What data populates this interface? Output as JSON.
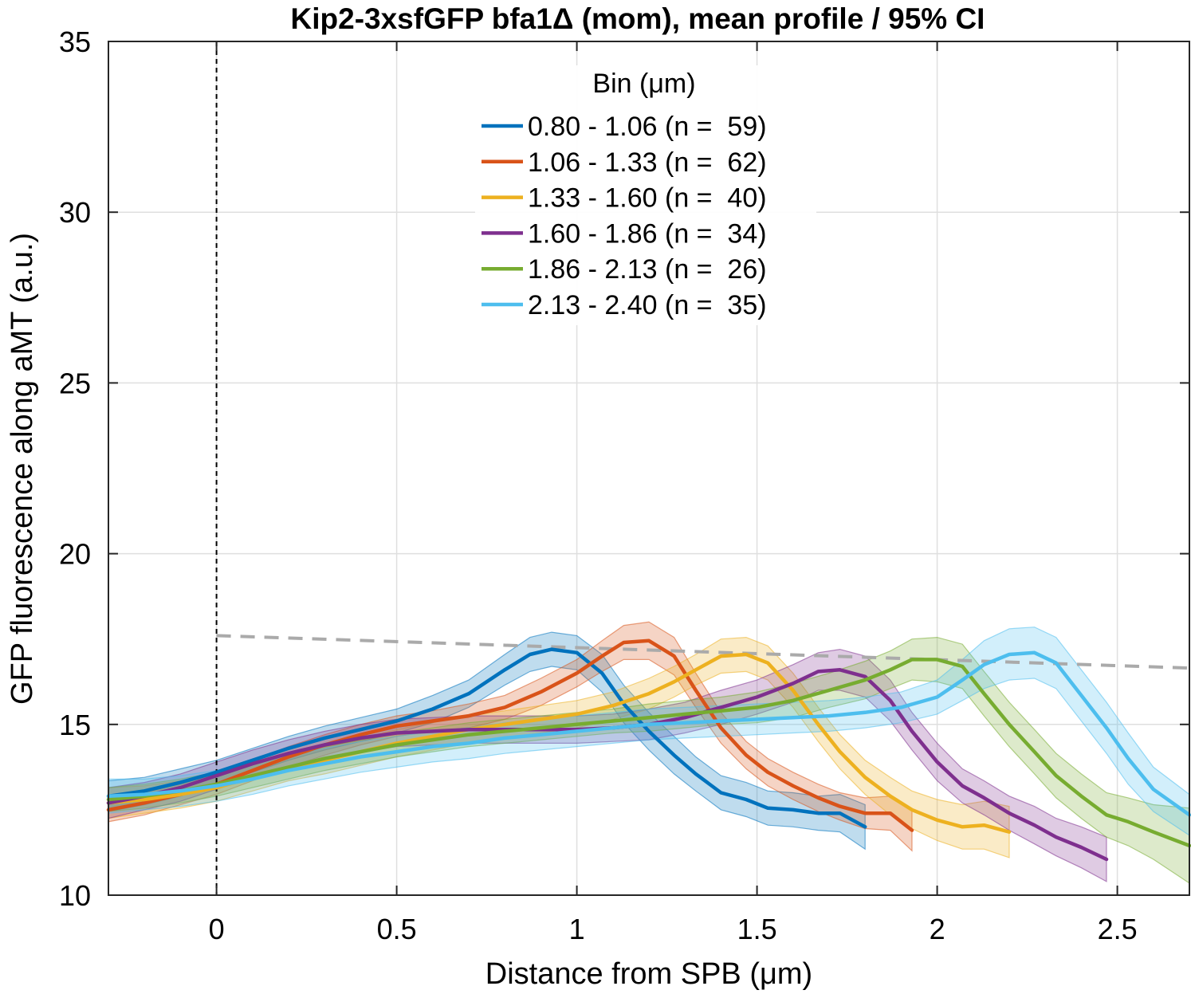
{
  "chart_data": {
    "type": "line",
    "title": "Kip2-3xsfGFP bfa1Δ (mom), mean profile / 95% CI",
    "xlabel": "Distance from SPB (μm)",
    "ylabel": "GFP fluorescence along aMT (a.u.)",
    "xlim": [
      -0.3,
      2.7
    ],
    "ylim": [
      10,
      35
    ],
    "xticks": [
      0,
      0.5,
      1,
      1.5,
      2,
      2.5
    ],
    "xtick_labels": [
      "0",
      "0.5",
      "1",
      "1.5",
      "2",
      "2.5"
    ],
    "yticks": [
      10,
      15,
      20,
      25,
      30,
      35
    ],
    "ytick_labels": [
      "10",
      "15",
      "20",
      "25",
      "30",
      "35"
    ],
    "grid": true,
    "confidence_band": "95% CI",
    "legend": {
      "title": "Bin (μm)",
      "placement": "top-center"
    },
    "reference_lines": [
      {
        "kind": "vertical",
        "x": 0,
        "style": "dashed",
        "color": "#000000"
      },
      {
        "kind": "trend",
        "x": [
          0,
          2.7
        ],
        "y": [
          17.6,
          16.65
        ],
        "style": "dashed",
        "color": "#aaaaaa"
      }
    ],
    "series": [
      {
        "name": "0.80 - 1.06 (n =  59)",
        "color": "#0072BD",
        "x": [
          -0.3,
          -0.2,
          -0.1,
          0,
          0.1,
          0.2,
          0.3,
          0.4,
          0.5,
          0.6,
          0.7,
          0.8,
          0.87,
          0.93,
          1.0,
          1.07,
          1.13,
          1.2,
          1.27,
          1.33,
          1.4,
          1.47,
          1.53,
          1.6,
          1.67,
          1.73,
          1.8
        ],
        "y": [
          12.9,
          13.05,
          13.3,
          13.6,
          13.95,
          14.3,
          14.6,
          14.85,
          15.1,
          15.45,
          15.9,
          16.6,
          17.05,
          17.2,
          17.1,
          16.5,
          15.6,
          14.8,
          14.1,
          13.55,
          13.0,
          12.8,
          12.55,
          12.5,
          12.4,
          12.4,
          12.0
        ],
        "ci": [
          0.45,
          0.4,
          0.4,
          0.35,
          0.35,
          0.35,
          0.35,
          0.35,
          0.35,
          0.4,
          0.4,
          0.45,
          0.5,
          0.5,
          0.5,
          0.55,
          0.55,
          0.55,
          0.55,
          0.5,
          0.5,
          0.5,
          0.5,
          0.5,
          0.5,
          0.55,
          0.65
        ]
      },
      {
        "name": "1.06 - 1.33 (n =  62)",
        "color": "#D95319",
        "x": [
          -0.3,
          -0.2,
          -0.1,
          0,
          0.1,
          0.2,
          0.3,
          0.4,
          0.5,
          0.6,
          0.7,
          0.8,
          0.9,
          1.0,
          1.07,
          1.13,
          1.2,
          1.27,
          1.33,
          1.4,
          1.47,
          1.53,
          1.6,
          1.67,
          1.73,
          1.8,
          1.87,
          1.93
        ],
        "y": [
          12.5,
          12.7,
          12.95,
          13.25,
          13.65,
          14.05,
          14.4,
          14.7,
          14.95,
          15.1,
          15.25,
          15.5,
          15.95,
          16.5,
          17.0,
          17.4,
          17.45,
          17.0,
          16.0,
          14.9,
          14.1,
          13.6,
          13.2,
          12.85,
          12.6,
          12.4,
          12.4,
          11.9
        ],
        "ci": [
          0.35,
          0.35,
          0.3,
          0.3,
          0.3,
          0.3,
          0.3,
          0.3,
          0.3,
          0.3,
          0.35,
          0.35,
          0.4,
          0.4,
          0.45,
          0.5,
          0.55,
          0.55,
          0.5,
          0.45,
          0.4,
          0.4,
          0.4,
          0.4,
          0.4,
          0.45,
          0.5,
          0.6
        ]
      },
      {
        "name": "1.33 - 1.60 (n =  40)",
        "color": "#EDB120",
        "x": [
          -0.3,
          -0.2,
          -0.1,
          0,
          0.1,
          0.2,
          0.3,
          0.4,
          0.5,
          0.6,
          0.7,
          0.8,
          0.9,
          1.0,
          1.1,
          1.2,
          1.27,
          1.33,
          1.4,
          1.47,
          1.53,
          1.6,
          1.67,
          1.73,
          1.8,
          1.87,
          1.93,
          2.0,
          2.07,
          2.13,
          2.2
        ],
        "y": [
          12.7,
          12.8,
          12.95,
          13.15,
          13.45,
          13.75,
          13.95,
          14.2,
          14.45,
          14.65,
          14.85,
          15.0,
          15.15,
          15.3,
          15.55,
          15.9,
          16.25,
          16.6,
          17.0,
          17.05,
          16.8,
          16.0,
          15.0,
          14.2,
          13.45,
          12.9,
          12.5,
          12.2,
          12.0,
          12.05,
          11.85
        ],
        "ci": [
          0.45,
          0.4,
          0.4,
          0.4,
          0.4,
          0.4,
          0.4,
          0.4,
          0.4,
          0.4,
          0.4,
          0.4,
          0.4,
          0.4,
          0.4,
          0.45,
          0.45,
          0.45,
          0.5,
          0.5,
          0.5,
          0.5,
          0.5,
          0.5,
          0.5,
          0.55,
          0.55,
          0.6,
          0.65,
          0.7,
          0.75
        ]
      },
      {
        "name": "1.60 - 1.86 (n =  34)",
        "color": "#7E2F8E",
        "x": [
          -0.3,
          -0.2,
          -0.1,
          0,
          0.1,
          0.2,
          0.3,
          0.4,
          0.5,
          0.6,
          0.7,
          0.8,
          0.9,
          1.0,
          1.1,
          1.2,
          1.3,
          1.4,
          1.5,
          1.6,
          1.67,
          1.73,
          1.8,
          1.87,
          1.93,
          2.0,
          2.07,
          2.13,
          2.2,
          2.27,
          2.33,
          2.4,
          2.47
        ],
        "y": [
          12.7,
          12.9,
          13.15,
          13.5,
          13.85,
          14.15,
          14.4,
          14.6,
          14.75,
          14.8,
          14.85,
          14.85,
          14.85,
          14.85,
          14.9,
          15.0,
          15.2,
          15.5,
          15.8,
          16.2,
          16.55,
          16.6,
          16.4,
          15.7,
          14.8,
          13.9,
          13.2,
          12.85,
          12.4,
          12.05,
          11.7,
          11.4,
          11.05
        ],
        "ci": [
          0.45,
          0.4,
          0.4,
          0.4,
          0.4,
          0.4,
          0.4,
          0.4,
          0.4,
          0.4,
          0.4,
          0.4,
          0.4,
          0.4,
          0.4,
          0.45,
          0.45,
          0.5,
          0.5,
          0.55,
          0.55,
          0.6,
          0.6,
          0.6,
          0.55,
          0.55,
          0.5,
          0.5,
          0.5,
          0.55,
          0.55,
          0.6,
          0.65
        ]
      },
      {
        "name": "1.86 - 2.13 (n =  26)",
        "color": "#77AC30",
        "x": [
          -0.3,
          -0.2,
          -0.1,
          0,
          0.1,
          0.2,
          0.3,
          0.4,
          0.5,
          0.6,
          0.7,
          0.8,
          0.9,
          1.0,
          1.1,
          1.2,
          1.3,
          1.4,
          1.5,
          1.6,
          1.7,
          1.8,
          1.87,
          1.93,
          2.0,
          2.07,
          2.13,
          2.2,
          2.27,
          2.33,
          2.4,
          2.47,
          2.53,
          2.6,
          2.7
        ],
        "y": [
          12.8,
          12.9,
          13.05,
          13.25,
          13.5,
          13.75,
          14.0,
          14.2,
          14.4,
          14.55,
          14.7,
          14.8,
          14.9,
          15.0,
          15.1,
          15.2,
          15.3,
          15.4,
          15.5,
          15.7,
          16.0,
          16.3,
          16.6,
          16.9,
          16.9,
          16.7,
          15.9,
          15.0,
          14.2,
          13.5,
          12.9,
          12.35,
          12.15,
          11.85,
          11.45
        ],
        "ci": [
          0.35,
          0.35,
          0.35,
          0.35,
          0.35,
          0.35,
          0.35,
          0.35,
          0.35,
          0.35,
          0.35,
          0.35,
          0.35,
          0.35,
          0.35,
          0.4,
          0.4,
          0.4,
          0.45,
          0.5,
          0.5,
          0.55,
          0.55,
          0.6,
          0.65,
          0.65,
          0.65,
          0.65,
          0.65,
          0.65,
          0.65,
          0.65,
          0.7,
          0.8,
          1.1
        ]
      },
      {
        "name": "2.13 - 2.40 (n =  35)",
        "color": "#4DBEEE",
        "x": [
          -0.3,
          -0.2,
          -0.1,
          0,
          0.1,
          0.2,
          0.3,
          0.4,
          0.5,
          0.6,
          0.7,
          0.8,
          0.9,
          1.0,
          1.1,
          1.2,
          1.3,
          1.4,
          1.5,
          1.6,
          1.7,
          1.8,
          1.9,
          2.0,
          2.07,
          2.13,
          2.2,
          2.27,
          2.33,
          2.4,
          2.47,
          2.53,
          2.6,
          2.7
        ],
        "y": [
          12.9,
          12.95,
          13.05,
          13.2,
          13.4,
          13.65,
          13.85,
          14.05,
          14.2,
          14.35,
          14.45,
          14.6,
          14.7,
          14.8,
          14.9,
          15.0,
          15.05,
          15.1,
          15.15,
          15.2,
          15.25,
          15.35,
          15.5,
          15.8,
          16.3,
          16.75,
          17.05,
          17.1,
          16.8,
          15.85,
          14.9,
          14.0,
          13.1,
          12.35
        ],
        "ci": [
          0.5,
          0.45,
          0.45,
          0.45,
          0.45,
          0.45,
          0.45,
          0.45,
          0.45,
          0.45,
          0.45,
          0.45,
          0.45,
          0.45,
          0.45,
          0.45,
          0.45,
          0.45,
          0.45,
          0.45,
          0.45,
          0.45,
          0.45,
          0.5,
          0.6,
          0.7,
          0.75,
          0.75,
          0.75,
          0.75,
          0.75,
          0.75,
          0.65,
          0.6
        ]
      }
    ]
  }
}
